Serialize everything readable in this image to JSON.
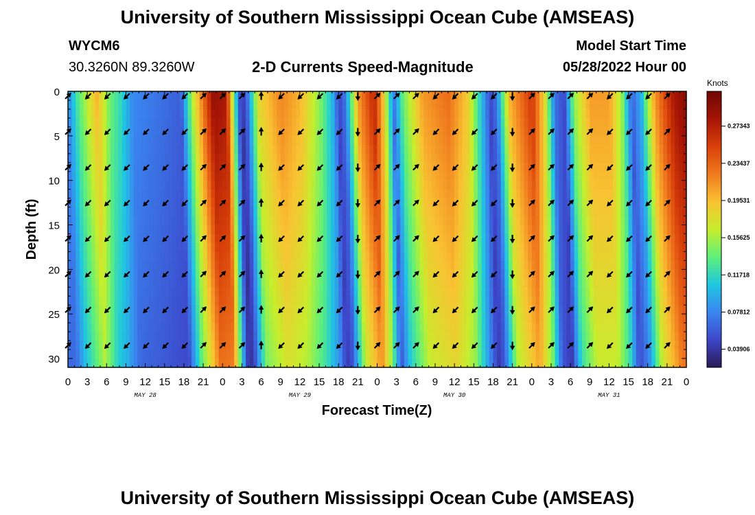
{
  "header": {
    "title": "University of Southern Mississippi Ocean Cube (AMSEAS)",
    "station_id": "WYCM6",
    "station_coords": "30.3260N  89.3260W",
    "subtitle": "2-D Currents Speed-Magnitude",
    "model_start_label": "Model Start Time",
    "model_start_value": "05/28/2022 Hour 00"
  },
  "chart_data": {
    "type": "heatmap",
    "title": "2-D Currents Speed-Magnitude",
    "xlabel": "Forecast Time(Z)",
    "ylabel": "Depth (ft)",
    "x_hours_range": [
      0,
      96
    ],
    "ylim": [
      0,
      31
    ],
    "y_inverted": true,
    "x_tick_labels": [
      "0",
      "3",
      "6",
      "9",
      "12",
      "15",
      "18",
      "21",
      "0",
      "3",
      "6",
      "9",
      "12",
      "15",
      "18",
      "21",
      "0",
      "3",
      "6",
      "9",
      "12",
      "15",
      "18",
      "21",
      "0",
      "3",
      "6",
      "9",
      "12",
      "15",
      "18",
      "21",
      "0"
    ],
    "y_ticks": [
      0,
      5,
      10,
      15,
      20,
      25,
      30
    ],
    "day_labels": [
      {
        "label": "MAY 28",
        "hour": 12
      },
      {
        "label": "MAY 29",
        "hour": 36
      },
      {
        "label": "MAY 30",
        "hour": 60
      },
      {
        "label": "MAY 31",
        "hour": 84
      }
    ],
    "colorbar": {
      "unit": "Knots",
      "range": [
        0.02,
        0.31
      ],
      "ticks": [
        0.03906,
        0.07812,
        0.11718,
        0.15625,
        0.19531,
        0.23437,
        0.27343
      ],
      "tick_labels": [
        "0.03906",
        "0.07812",
        "0.11718",
        "0.15625",
        "0.19531",
        "0.23437",
        "0.27343"
      ],
      "colors": [
        "#2a1a55",
        "#3d46c9",
        "#3a86f0",
        "#1fc7e0",
        "#5ef07a",
        "#c6ee2c",
        "#f9c232",
        "#f07a1e",
        "#d8400a",
        "#a61505",
        "#6e0703"
      ]
    },
    "speed_keyframes": [
      {
        "hour": 0,
        "speed": 0.07
      },
      {
        "hour": 1.5,
        "speed": 0.12
      },
      {
        "hour": 4.5,
        "speed": 0.19
      },
      {
        "hour": 6.5,
        "speed": 0.13
      },
      {
        "hour": 8,
        "speed": 0.11
      },
      {
        "hour": 10,
        "speed": 0.07
      },
      {
        "hour": 14,
        "speed": 0.06
      },
      {
        "hour": 17.5,
        "speed": 0.05
      },
      {
        "hour": 19.5,
        "speed": 0.16
      },
      {
        "hour": 22.5,
        "speed": 0.28
      },
      {
        "hour": 24.5,
        "speed": 0.27
      },
      {
        "hour": 26.5,
        "speed": 0.05
      },
      {
        "hour": 27,
        "speed": 0.03
      },
      {
        "hour": 27.7,
        "speed": 0.05
      },
      {
        "hour": 29.5,
        "speed": 0.17
      },
      {
        "hour": 33,
        "speed": 0.21
      },
      {
        "hour": 36,
        "speed": 0.19
      },
      {
        "hour": 39,
        "speed": 0.14
      },
      {
        "hour": 41,
        "speed": 0.09
      },
      {
        "hour": 42,
        "speed": 0.04
      },
      {
        "hour": 43,
        "speed": 0.06
      },
      {
        "hour": 45,
        "speed": 0.2
      },
      {
        "hour": 47.5,
        "speed": 0.26
      },
      {
        "hour": 49,
        "speed": 0.18
      },
      {
        "hour": 50.5,
        "speed": 0.06
      },
      {
        "hour": 52,
        "speed": 0.13
      },
      {
        "hour": 55,
        "speed": 0.2
      },
      {
        "hour": 59,
        "speed": 0.22
      },
      {
        "hour": 62,
        "speed": 0.18
      },
      {
        "hour": 64,
        "speed": 0.1
      },
      {
        "hour": 65.5,
        "speed": 0.04
      },
      {
        "hour": 66.5,
        "speed": 0.06
      },
      {
        "hour": 68.5,
        "speed": 0.19
      },
      {
        "hour": 72,
        "speed": 0.25
      },
      {
        "hour": 74,
        "speed": 0.17
      },
      {
        "hour": 75.5,
        "speed": 0.06
      },
      {
        "hour": 77,
        "speed": 0.04
      },
      {
        "hour": 78.5,
        "speed": 0.14
      },
      {
        "hour": 81,
        "speed": 0.2
      },
      {
        "hour": 84,
        "speed": 0.2
      },
      {
        "hour": 86,
        "speed": 0.14
      },
      {
        "hour": 87.5,
        "speed": 0.05
      },
      {
        "hour": 89,
        "speed": 0.09
      },
      {
        "hour": 91,
        "speed": 0.2
      },
      {
        "hour": 94,
        "speed": 0.27
      },
      {
        "hour": 96,
        "speed": 0.29
      }
    ],
    "vector_depths": [
      0,
      4,
      8,
      12,
      16,
      20,
      24,
      28
    ],
    "vector_hours": [
      0,
      3,
      6,
      9,
      12,
      15,
      18,
      21,
      24,
      27,
      30,
      33,
      36,
      39,
      42,
      45,
      48,
      51,
      54,
      57,
      60,
      63,
      66,
      69,
      72,
      75,
      78,
      81,
      84,
      87,
      90,
      93
    ],
    "vector_directions": [
      "NE",
      "SW",
      "SW",
      "SW",
      "SW",
      "SW",
      "SW",
      "NE",
      "NE",
      "NE",
      "N",
      "SW",
      "SW",
      "SW",
      "SW",
      "S",
      "NE",
      "NE",
      "NE",
      "SW",
      "SW",
      "SW",
      "SW",
      "S",
      "NE",
      "NE",
      "NE",
      "NE",
      "SW",
      "SW",
      "SW",
      "NE"
    ]
  },
  "bottom_title": "University of Southern Mississippi Ocean Cube (AMSEAS)"
}
